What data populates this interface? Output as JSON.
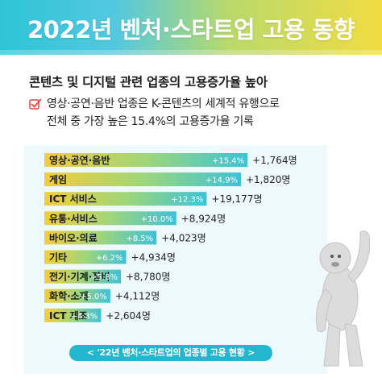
{
  "header": {
    "title": "2022년 벤처·스타트업 고용 동향"
  },
  "subtitle": "콘텐츠 및 디지털 관련 업종의 고용증가율 높아",
  "description": {
    "icon": "check-box-icon",
    "line1": "영상·공연·음반 업종은 K-콘텐츠의 세계적 유행으로",
    "line2": "전체 중 가장 높은 15.4%의 고용증가율 기록"
  },
  "colors": {
    "bar_start": "#f4cd3a",
    "bar_mid": "#9fd67a",
    "bar_end": "#3dc2d8",
    "panel": "#eef9fb",
    "caption": "#23b7cf"
  },
  "chart_data": {
    "type": "bar",
    "orientation": "horizontal",
    "categories": [
      "영상·공연·음반",
      "게임",
      "ICT 서비스",
      "유통·서비스",
      "바이오·의료",
      "기타",
      "전기·기계·장비",
      "화학·소재",
      "ICT 제조"
    ],
    "series": [
      {
        "values": [
          15.4,
          14.9,
          12.3,
          10.0,
          8.5,
          6.2,
          5.8,
          5.0,
          4.3
        ],
        "labels": [
          "+15.4%",
          "+14.9%",
          "+12.3%",
          "+10.0%",
          "+8.5%",
          "+6.2%",
          "+5.8%",
          "+5.0%",
          "+4.3%"
        ]
      }
    ],
    "increases": [
      1764,
      1820,
      19177,
      8924,
      4023,
      4934,
      8780,
      4112,
      2604
    ],
    "increase_labels": [
      "+1,764명",
      "+1,820명",
      "+19,177명",
      "+8,924명",
      "+4,023명",
      "+4,934명",
      "+8,780명",
      "+4,112명",
      "+2,604명"
    ],
    "xlim": [
      0,
      16
    ]
  },
  "caption": "< '22년 벤처·스타트업의 업종별 고용 현황 >",
  "mascot": {
    "icon": "yeti-mascot-icon"
  }
}
